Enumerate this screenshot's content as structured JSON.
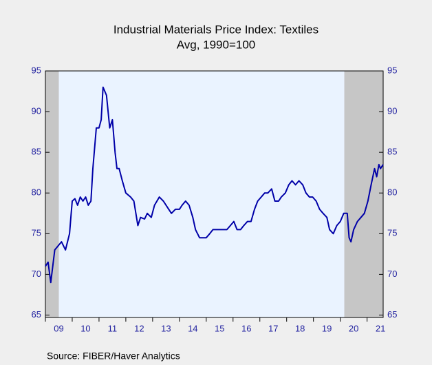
{
  "chart_data": {
    "type": "line",
    "title": "Industrial Materials Price Index: Textiles",
    "subtitle": "Avg, 1990=100",
    "source": "Source:   FIBER/Haver Analytics",
    "shaded_periods": [
      [
        2009.0,
        2009.5
      ],
      [
        2020.15,
        2021.6
      ]
    ],
    "xlim": [
      2009.0,
      2021.6
    ],
    "xticks": [
      {
        "value": 2009,
        "label": "09"
      },
      {
        "value": 2010,
        "label": "10"
      },
      {
        "value": 2011,
        "label": "11"
      },
      {
        "value": 2012,
        "label": "12"
      },
      {
        "value": 2013,
        "label": "13"
      },
      {
        "value": 2014,
        "label": "14"
      },
      {
        "value": 2015,
        "label": "15"
      },
      {
        "value": 2016,
        "label": "16"
      },
      {
        "value": 2017,
        "label": "17"
      },
      {
        "value": 2018,
        "label": "18"
      },
      {
        "value": 2019,
        "label": "19"
      },
      {
        "value": 2020,
        "label": "20"
      },
      {
        "value": 2021,
        "label": "21"
      }
    ],
    "ylim": [
      64.7,
      95
    ],
    "yticks": [
      65,
      70,
      75,
      80,
      85,
      90,
      95
    ],
    "y2lim": [
      64.7,
      95
    ],
    "y2ticks": [
      65,
      70,
      75,
      80,
      85,
      90,
      95
    ],
    "x": [
      2009.0,
      2009.1,
      2009.2,
      2009.35,
      2009.6,
      2009.75,
      2009.9,
      2009.95,
      2010.0,
      2010.1,
      2010.2,
      2010.3,
      2010.4,
      2010.5,
      2010.6,
      2010.7,
      2010.77,
      2010.9,
      2011.0,
      2011.08,
      2011.15,
      2011.28,
      2011.4,
      2011.5,
      2011.6,
      2011.67,
      2011.75,
      2011.87,
      2012.0,
      2012.18,
      2012.3,
      2012.45,
      2012.55,
      2012.7,
      2012.8,
      2012.95,
      2013.07,
      2013.25,
      2013.4,
      2013.6,
      2013.7,
      2013.85,
      2014.0,
      2014.1,
      2014.23,
      2014.36,
      2014.5,
      2014.6,
      2014.75,
      2014.87,
      2015.0,
      2015.13,
      2015.25,
      2015.38,
      2015.5,
      2015.64,
      2015.77,
      2015.9,
      2016.03,
      2016.15,
      2016.28,
      2016.4,
      2016.54,
      2016.67,
      2016.8,
      2016.92,
      2017.05,
      2017.18,
      2017.3,
      2017.44,
      2017.56,
      2017.7,
      2017.8,
      2017.95,
      2018.08,
      2018.2,
      2018.33,
      2018.46,
      2018.6,
      2018.72,
      2018.85,
      2018.97,
      2019.1,
      2019.23,
      2019.36,
      2019.5,
      2019.6,
      2019.74,
      2019.87,
      2020.0,
      2020.13,
      2020.26,
      2020.33,
      2020.4,
      2020.5,
      2020.64,
      2020.77,
      2020.9,
      2021.03,
      2021.15,
      2021.28,
      2021.36,
      2021.44,
      2021.5,
      2021.6
    ],
    "series": [
      {
        "name": "Textiles",
        "color": "#0000a8",
        "values": [
          71,
          71.5,
          69,
          73,
          74,
          73,
          75,
          77,
          79,
          79.3,
          78.5,
          79.5,
          79,
          79.5,
          78.5,
          79,
          83,
          88,
          88,
          89,
          93,
          92,
          88,
          89,
          85,
          83,
          83,
          81.5,
          80,
          79.5,
          79,
          76,
          77,
          76.8,
          77.5,
          77,
          78.5,
          79.5,
          79,
          78,
          77.5,
          78,
          78,
          78.5,
          79,
          78.5,
          77,
          75.5,
          74.5,
          74.5,
          74.5,
          75,
          75.5,
          75.5,
          75.5,
          75.5,
          75.5,
          76,
          76.5,
          75.5,
          75.5,
          76,
          76.5,
          76.5,
          78,
          79,
          79.5,
          80,
          80,
          80.5,
          79,
          79,
          79.5,
          80,
          81,
          81.5,
          81,
          81.5,
          81,
          80,
          79.5,
          79.5,
          79,
          78,
          77.5,
          77,
          75.5,
          75,
          76,
          76.5,
          77.5,
          77.5,
          74.5,
          74,
          75.5,
          76.5,
          77,
          77.5,
          79,
          81,
          83,
          82,
          83.5,
          83,
          83.5
        ]
      }
    ]
  }
}
